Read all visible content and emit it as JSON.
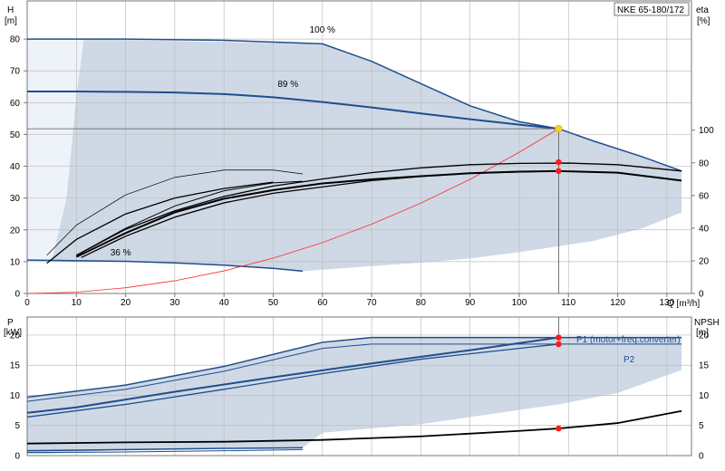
{
  "chart_data": [
    {
      "type": "line",
      "name_box": "NKE 65-180/172",
      "ylabel_left": "H",
      "ylabel_left_unit": "[m]",
      "ylabel_right": "eta",
      "ylabel_right_unit": "[%]",
      "xlabel": "Q [m³/h]",
      "xlim": [
        0,
        135
      ],
      "ylim": [
        0,
        92
      ],
      "x_ticks": [
        0,
        10,
        20,
        30,
        40,
        50,
        60,
        70,
        80,
        90,
        100,
        110,
        120,
        130
      ],
      "y_ticks": [
        0,
        10,
        20,
        30,
        40,
        50,
        60,
        70,
        80
      ],
      "eta_ticks": [
        0,
        20,
        40,
        60,
        80,
        100
      ],
      "eta_range": [
        0,
        100
      ],
      "speed_labels": [
        {
          "text": "100 %",
          "x": 60,
          "y": 82
        },
        {
          "text": "89 %",
          "x": 53,
          "y": 65
        },
        {
          "text": "36 %",
          "x": 19,
          "y": 12
        }
      ],
      "operating_point": {
        "Q": 108,
        "H": 51.8
      },
      "series": [
        {
          "role": "head-100",
          "values": [
            [
              0,
              80
            ],
            [
              20,
              80
            ],
            [
              40,
              79.6
            ],
            [
              60,
              78.5
            ],
            [
              70,
              73
            ],
            [
              80,
              66
            ],
            [
              90,
              59
            ],
            [
              100,
              54
            ],
            [
              108,
              51.8
            ],
            [
              115,
              48
            ],
            [
              125,
              43
            ],
            [
              133,
              38.5
            ]
          ]
        },
        {
          "role": "head-89",
          "values": [
            [
              0,
              63.5
            ],
            [
              10,
              63.5
            ],
            [
              20,
              63.4
            ],
            [
              30,
              63.2
            ],
            [
              40,
              62.7
            ],
            [
              50,
              61.7
            ],
            [
              60,
              60.2
            ],
            [
              70,
              58.5
            ],
            [
              80,
              56.6
            ],
            [
              90,
              54.8
            ],
            [
              100,
              53.1
            ],
            [
              108,
              51.8
            ]
          ]
        },
        {
          "role": "head-36",
          "values": [
            [
              0,
              10.5
            ],
            [
              20,
              10.1
            ],
            [
              30,
              9.6
            ],
            [
              40,
              8.9
            ],
            [
              50,
              7.9
            ],
            [
              56,
              7
            ]
          ]
        },
        {
          "role": "system-curve",
          "values": [
            [
              0,
              0
            ],
            [
              10,
              0.4
            ],
            [
              20,
              1.8
            ],
            [
              30,
              4
            ],
            [
              40,
              7.1
            ],
            [
              50,
              11.1
            ],
            [
              60,
              16
            ],
            [
              70,
              21.8
            ],
            [
              80,
              28.4
            ],
            [
              90,
              35.9
            ],
            [
              100,
              44.4
            ],
            [
              108,
              51.8
            ]
          ]
        },
        {
          "role": "eta-thin-1",
          "values": [
            [
              4,
              12
            ],
            [
              10,
              21.5
            ],
            [
              20,
              31
            ],
            [
              30,
              36.5
            ],
            [
              40,
              38.8
            ],
            [
              50,
              38.8
            ],
            [
              56,
              37.6
            ]
          ]
        },
        {
          "role": "eta-thin-2",
          "values": [
            [
              10,
              12
            ],
            [
              20,
              20.5
            ],
            [
              30,
              27.5
            ],
            [
              40,
              32.3
            ],
            [
              50,
              34.8
            ],
            [
              56,
              35.3
            ]
          ]
        },
        {
          "role": "eta-thin-3",
          "values": [
            [
              10,
              12
            ],
            [
              20,
              20.2
            ],
            [
              30,
              26
            ],
            [
              40,
              30.5
            ],
            [
              50,
              33.8
            ],
            [
              60,
              36
            ],
            [
              70,
              38
            ],
            [
              80,
              39.5
            ],
            [
              90,
              40.5
            ],
            [
              100,
              40.9
            ],
            [
              110,
              41
            ],
            [
              120,
              40.5
            ],
            [
              133,
              38.5
            ]
          ]
        },
        {
          "role": "eta-main",
          "values": [
            [
              10,
              11.5
            ],
            [
              20,
              19
            ],
            [
              30,
              25.5
            ],
            [
              40,
              29.8
            ],
            [
              50,
              32.5
            ],
            [
              60,
              34.6
            ],
            [
              70,
              35.9
            ],
            [
              80,
              36.9
            ],
            [
              90,
              37.8
            ],
            [
              100,
              38.3
            ],
            [
              108,
              38.5
            ],
            [
              120,
              38
            ],
            [
              133,
              35.5
            ]
          ]
        },
        {
          "role": "eta-low-1",
          "values": [
            [
              4,
              9.5
            ],
            [
              10,
              17
            ],
            [
              20,
              25
            ],
            [
              30,
              30
            ],
            [
              40,
              33
            ],
            [
              50,
              35
            ]
          ]
        },
        {
          "role": "eta-low-2",
          "values": [
            [
              11,
              11.3
            ],
            [
              20,
              18
            ],
            [
              30,
              24
            ],
            [
              40,
              28.5
            ],
            [
              50,
              31.5
            ],
            [
              60,
              33.5
            ],
            [
              70,
              35.5
            ],
            [
              80,
              36.8
            ],
            [
              90,
              37.8
            ],
            [
              100,
              38.2
            ],
            [
              108,
              38.5
            ]
          ]
        }
      ],
      "markers": [
        {
          "x": 108,
          "y": 41.3
        },
        {
          "x": 108,
          "y": 38.5
        }
      ]
    },
    {
      "type": "line",
      "ylabel_left": "P",
      "ylabel_left_unit": "[kW]",
      "ylabel_right": "NPSH",
      "ylabel_right_unit": "[m]",
      "xlim": [
        0,
        135
      ],
      "ylim": [
        0,
        23
      ],
      "y_ticks": [
        0,
        5,
        10,
        15,
        20
      ],
      "legend_entries": [
        {
          "text": "P1 (motor+freq.converter)"
        },
        {
          "text": "P2"
        }
      ],
      "series": [
        {
          "role": "p1-100",
          "values": [
            [
              0,
              9.7
            ],
            [
              20,
              11.7
            ],
            [
              40,
              14.8
            ],
            [
              60,
              18.8
            ],
            [
              70,
              19.6
            ],
            [
              90,
              19.6
            ],
            [
              108,
              19.6
            ],
            [
              133,
              19.6
            ]
          ]
        },
        {
          "role": "p2-100",
          "values": [
            [
              0,
              9
            ],
            [
              20,
              11
            ],
            [
              40,
              14
            ],
            [
              60,
              17.8
            ],
            [
              70,
              18.5
            ],
            [
              90,
              18.5
            ],
            [
              108,
              18.5
            ],
            [
              133,
              18.5
            ]
          ]
        },
        {
          "role": "p1-89",
          "values": [
            [
              0,
              7.1
            ],
            [
              10,
              8
            ],
            [
              30,
              10.6
            ],
            [
              50,
              13
            ],
            [
              70,
              15.3
            ],
            [
              90,
              17.5
            ],
            [
              108,
              19.6
            ]
          ]
        },
        {
          "role": "p2-89",
          "values": [
            [
              0,
              6.4
            ],
            [
              20,
              8.5
            ],
            [
              40,
              11
            ],
            [
              60,
              13.6
            ],
            [
              80,
              16
            ],
            [
              100,
              17.8
            ],
            [
              108,
              18.5
            ]
          ]
        },
        {
          "role": "p1-36",
          "values": [
            [
              0,
              0.8
            ],
            [
              20,
              1
            ],
            [
              40,
              1.2
            ],
            [
              56,
              1.3
            ]
          ]
        },
        {
          "role": "p2-36",
          "values": [
            [
              0,
              0.5
            ],
            [
              20,
              0.6
            ],
            [
              40,
              0.8
            ],
            [
              56,
              1
            ]
          ]
        },
        {
          "role": "npsh",
          "values": [
            [
              0,
              2
            ],
            [
              20,
              2.2
            ],
            [
              40,
              2.3
            ],
            [
              60,
              2.6
            ],
            [
              80,
              3.2
            ],
            [
              100,
              4.1
            ],
            [
              108,
              4.5
            ],
            [
              120,
              5.4
            ],
            [
              133,
              7.4
            ]
          ]
        }
      ],
      "markers": [
        {
          "x": 108,
          "y": 19.6
        },
        {
          "x": 108,
          "y": 18.5
        },
        {
          "x": 108,
          "y": 4.5
        }
      ]
    }
  ]
}
